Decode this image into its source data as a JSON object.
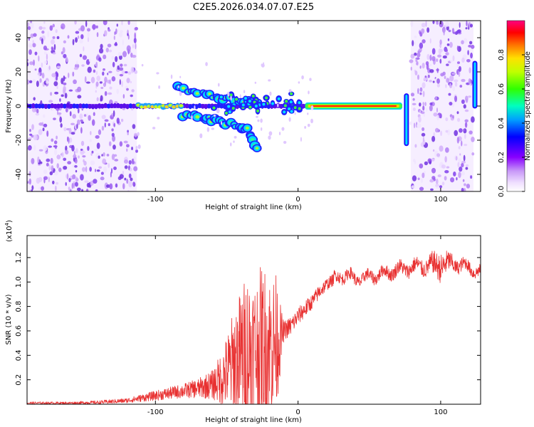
{
  "chart_data": [
    {
      "type": "heatmap",
      "title": "C2E5.2026.034.07.07.E25",
      "xlabel": "Height of straight line (km)",
      "ylabel": "Frequency (Hz)",
      "xlim": [
        -190,
        128
      ],
      "ylim": [
        -50,
        50
      ],
      "xticks": [
        -100,
        0,
        100
      ],
      "yticks": [
        -40,
        -20,
        0,
        20,
        40
      ],
      "colorbar": {
        "label": "Normalized spectral amplitude",
        "ticks": [
          0.0,
          0.2,
          0.4,
          0.6,
          0.8
        ],
        "tick_labels": [
          "0.0",
          "0.2",
          "0.4",
          "0.6",
          "0.8"
        ],
        "range": [
          0,
          1
        ]
      },
      "features": {
        "noise_regions_km": [
          [
            -190,
            -113
          ],
          [
            79,
            123
          ]
        ],
        "dc_line_km": [
          -190,
          73
        ],
        "dc_strong_km": [
          5,
          73
        ],
        "upper_branch": [
          [
            -85,
            11
          ],
          [
            -70,
            8
          ],
          [
            -55,
            5
          ],
          [
            -40,
            3
          ],
          [
            -25,
            1
          ]
        ],
        "lower_branch": [
          [
            -80,
            -5
          ],
          [
            -65,
            -7
          ],
          [
            -55,
            -9
          ],
          [
            -45,
            -11
          ],
          [
            -35,
            -14
          ],
          [
            -27,
            -26
          ]
        ],
        "spikes": [
          [
            76,
            -22,
            6
          ],
          [
            124,
            0,
            25
          ]
        ]
      }
    },
    {
      "type": "line",
      "xlabel": "Height of straight line (km)",
      "ylabel": "SNR (10 * v/v)",
      "multiplier": "(x10",
      "multiplier_exp": "4",
      "xlim": [
        -190,
        128
      ],
      "ylim": [
        0,
        1.38
      ],
      "xticks": [
        -100,
        0,
        100
      ],
      "yticks": [
        0.2,
        0.4,
        0.6,
        0.8,
        1.0,
        1.2
      ],
      "ytick_labels": [
        "0.2",
        "0.4",
        "0.6",
        "0.8",
        "1.0",
        "1.2"
      ],
      "series": [
        {
          "name": "SNR",
          "color": "#e83030",
          "x": [
            -190,
            -160,
            -140,
            -120,
            -110,
            -100,
            -90,
            -80,
            -70,
            -60,
            -55,
            -50,
            -45,
            -40,
            -35,
            -30,
            -25,
            -20,
            -15,
            -12,
            -10,
            -5,
            0,
            5,
            10,
            15,
            20,
            25,
            30,
            35,
            40,
            50,
            60,
            70,
            80,
            90,
            100,
            110,
            120,
            128
          ],
          "base": [
            0.01,
            0.01,
            0.015,
            0.03,
            0.05,
            0.07,
            0.09,
            0.11,
            0.13,
            0.16,
            0.2,
            0.26,
            0.34,
            0.4,
            0.42,
            0.44,
            0.46,
            0.48,
            0.52,
            0.54,
            0.6,
            0.64,
            0.72,
            0.78,
            0.84,
            0.92,
            0.98,
            1.02,
            1.05,
            1.06,
            1.02,
            1.04,
            1.07,
            1.1,
            1.12,
            1.13,
            1.14,
            1.15,
            1.12,
            1.07
          ],
          "amplitude": [
            0.01,
            0.01,
            0.015,
            0.02,
            0.03,
            0.04,
            0.05,
            0.06,
            0.08,
            0.12,
            0.2,
            0.3,
            0.45,
            0.55,
            0.7,
            0.6,
            0.7,
            0.6,
            0.55,
            0.25,
            0.08,
            0.08,
            0.07,
            0.07,
            0.06,
            0.06,
            0.05,
            0.05,
            0.05,
            0.05,
            0.05,
            0.05,
            0.05,
            0.06,
            0.06,
            0.07,
            0.12,
            0.06,
            0.05,
            0.05
          ]
        }
      ]
    }
  ]
}
